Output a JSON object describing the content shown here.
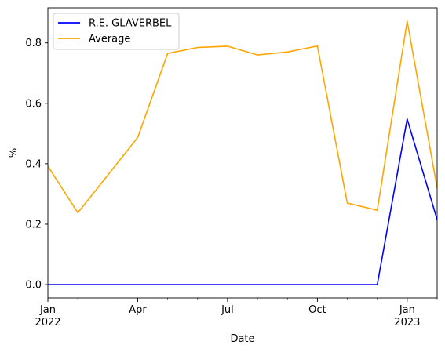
{
  "chart_data": {
    "type": "line",
    "title": "",
    "xlabel": "Date",
    "ylabel": "%",
    "x": [
      "2022-01",
      "2022-02",
      "2022-03",
      "2022-04",
      "2022-05",
      "2022-06",
      "2022-07",
      "2022-08",
      "2022-09",
      "2022-10",
      "2022-11",
      "2022-12",
      "2023-01",
      "2023-02"
    ],
    "series": [
      {
        "name": "R.E. GLAVERBEL",
        "color": "#0000ff",
        "values": [
          0,
          0,
          0,
          0,
          0,
          0,
          0,
          0,
          0,
          0,
          0,
          0,
          0.548,
          0.215
        ]
      },
      {
        "name": "Average",
        "color": "#ffa500",
        "values": [
          0.392,
          0.238,
          0.362,
          0.487,
          0.765,
          0.785,
          0.789,
          0.76,
          0.77,
          0.79,
          0.27,
          0.246,
          0.872,
          0.32
        ]
      }
    ],
    "ylim": [
      -0.044,
      0.916
    ],
    "yticks": [
      {
        "value": 0.0,
        "label": "0.0"
      },
      {
        "value": 0.2,
        "label": "0.2"
      },
      {
        "value": 0.4,
        "label": "0.4"
      },
      {
        "value": 0.6,
        "label": "0.6"
      },
      {
        "value": 0.8,
        "label": "0.8"
      }
    ],
    "xticks": [
      {
        "x": "2022-01",
        "label": "Jan",
        "sublabel": "2022"
      },
      {
        "x": "2022-04",
        "label": "Apr",
        "sublabel": ""
      },
      {
        "x": "2022-07",
        "label": "Jul",
        "sublabel": ""
      },
      {
        "x": "2022-10",
        "label": "Oct",
        "sublabel": ""
      },
      {
        "x": "2023-01",
        "label": "Jan",
        "sublabel": "2023"
      }
    ],
    "minor_xticks": [
      "2022-02",
      "2022-03",
      "2022-05",
      "2022-06",
      "2022-08",
      "2022-09",
      "2022-11",
      "2022-12",
      "2023-02"
    ],
    "legend": "top-left",
    "grid": false
  }
}
